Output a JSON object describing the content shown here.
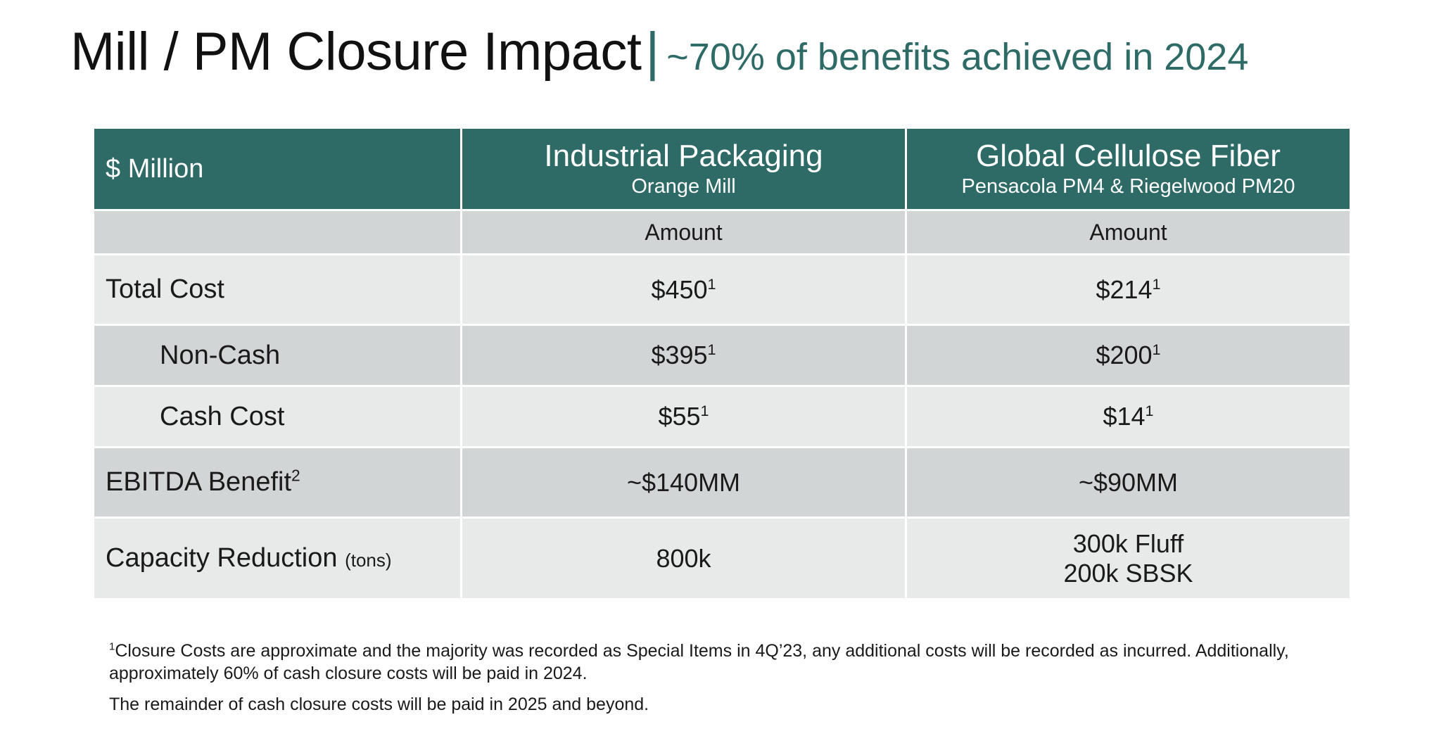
{
  "title": {
    "main": "Mill / PM Closure Impact",
    "separator": "|",
    "subtitle": "~70% of benefits achieved in 2024"
  },
  "table": {
    "header": {
      "row_label": "$ Million",
      "col1_title": "Industrial Packaging",
      "col1_subtitle": "Orange Mill",
      "col2_title": "Global Cellulose Fiber",
      "col2_subtitle": "Pensacola PM4 & Riegelwood PM20"
    },
    "subheader": {
      "col1": "Amount",
      "col2": "Amount"
    },
    "rows": [
      {
        "label": "Total Cost",
        "col1": "$450",
        "col1_fn": "1",
        "col2": "$214",
        "col2_fn": "1"
      },
      {
        "label": "Non-Cash",
        "col1": "$395",
        "col1_fn": "1",
        "col2": "$200",
        "col2_fn": "1"
      },
      {
        "label": "Cash Cost",
        "col1": "$55",
        "col1_fn": "1",
        "col2": "$14",
        "col2_fn": "1"
      },
      {
        "label": "EBITDA Benefit",
        "label_fn": "2",
        "col1": "~$140MM",
        "col2": "~$90MM"
      },
      {
        "label": "Capacity Reduction",
        "label_unit": "(tons)",
        "col1": "800k",
        "col2_line1": "300k Fluff",
        "col2_line2": "200k SBSK"
      }
    ]
  },
  "footnotes": {
    "note1_marker": "1",
    "note1": "Closure Costs are approximate and the majority was recorded as Special Items in 4Q’23, any additional costs will be recorded as incurred. Additionally, approximately 60% of cash closure costs will be paid in 2024.",
    "note2": "The remainder of cash closure costs will be paid in 2025 and beyond."
  },
  "colors": {
    "accent": "#2e6b66",
    "row_light": "#e8eaea",
    "row_dark": "#d1d5d5"
  }
}
